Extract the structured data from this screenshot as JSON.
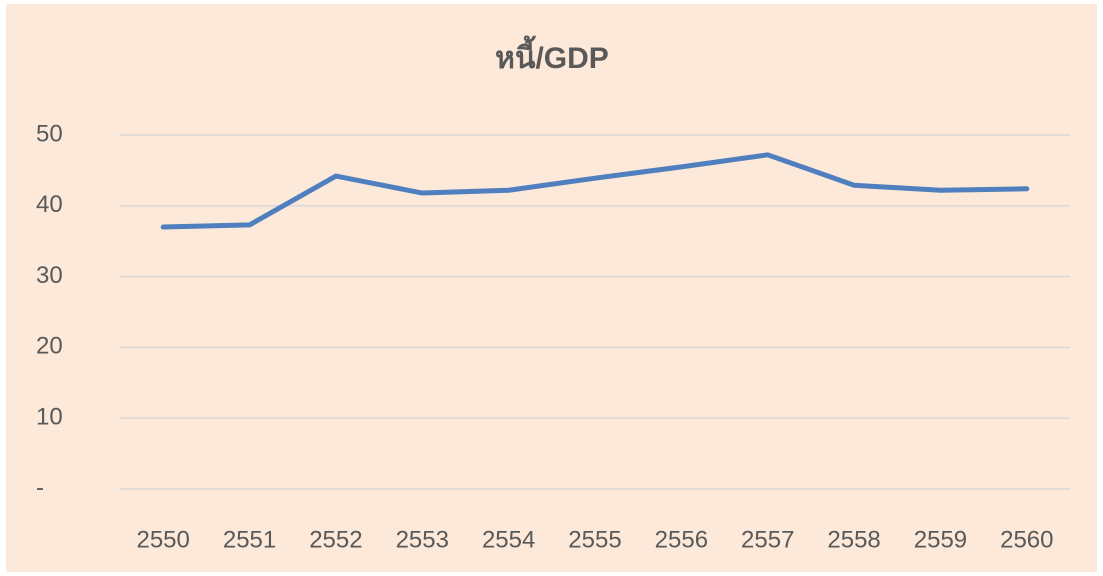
{
  "chart_data": {
    "type": "line",
    "title": "หนี้/GDP",
    "categories": [
      "2550",
      "2551",
      "2552",
      "2553",
      "2554",
      "2555",
      "2556",
      "2557",
      "2558",
      "2559",
      "2560"
    ],
    "series": [
      {
        "name": "หนี้/GDP",
        "color": "#4f7fbe",
        "values": [
          37.0,
          37.3,
          44.2,
          41.8,
          42.2,
          43.9,
          45.5,
          47.2,
          42.9,
          42.2,
          42.4
        ]
      }
    ],
    "ylim": [
      0,
      50
    ],
    "yticks": [
      {
        "value": 0,
        "label": "-"
      },
      10,
      20,
      30,
      40,
      50
    ],
    "grid": true
  }
}
